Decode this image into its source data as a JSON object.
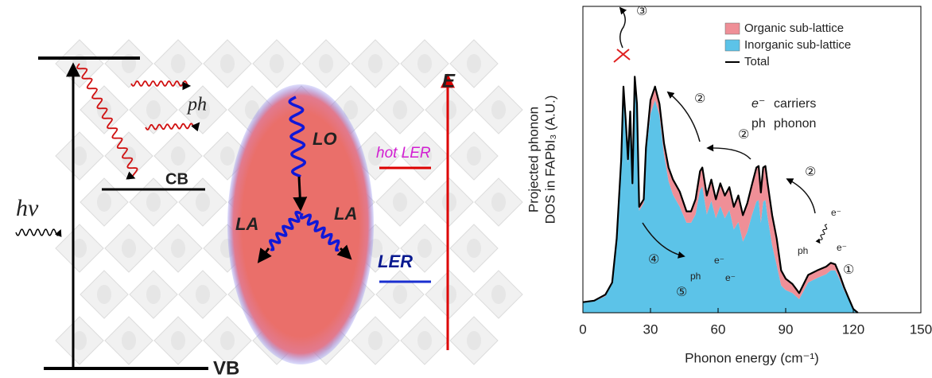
{
  "diagram": {
    "ph": "ph",
    "hv": "hν",
    "cb": "CB",
    "vb": "VB",
    "lo": "LO",
    "la_left": "LA",
    "la_right": "LA",
    "energy": "E",
    "hot_ler": "hot LER",
    "ler": "LER"
  },
  "chart_data": {
    "type": "area",
    "stacked": true,
    "x_label": "Phonon energy (cm⁻¹)",
    "y_label": [
      "Projected phonon",
      "DOS in FAPbI₃ (A.U.)"
    ],
    "xlim": [
      0,
      150
    ],
    "xticks": [
      0,
      30,
      60,
      90,
      120,
      150
    ],
    "ylim": [
      0,
      4.05
    ],
    "x": [
      0,
      5,
      10,
      13,
      15,
      17,
      18,
      19,
      20,
      21,
      22,
      23,
      24,
      25,
      27,
      28,
      30,
      32,
      34,
      36,
      38,
      40,
      43,
      46,
      48,
      50,
      52,
      53,
      55,
      57,
      59,
      61,
      63,
      65,
      67,
      69,
      71,
      73,
      75,
      77,
      78,
      79,
      80,
      81,
      82,
      84,
      86,
      88,
      90,
      93,
      96,
      100,
      104,
      108,
      110,
      112,
      114,
      116,
      118,
      120,
      122
    ],
    "series": [
      {
        "name": "Organic sub-lattice",
        "color": "#ef8f97",
        "values": [
          0.01,
          0.01,
          0.02,
          0.02,
          0.03,
          0.05,
          0.06,
          0.06,
          0.05,
          0.06,
          0.05,
          0.06,
          0.06,
          0.05,
          0.05,
          0.08,
          0.18,
          0.18,
          0.15,
          0.15,
          0.18,
          0.2,
          0.2,
          0.15,
          0.15,
          0.2,
          0.25,
          0.25,
          0.25,
          0.28,
          0.25,
          0.3,
          0.3,
          0.3,
          0.3,
          0.35,
          0.35,
          0.38,
          0.4,
          0.45,
          0.45,
          0.4,
          0.45,
          0.45,
          0.45,
          0.4,
          0.35,
          0.2,
          0.15,
          0.12,
          0.08,
          0.1,
          0.1,
          0.1,
          0.1,
          0.08,
          0.06,
          0.04,
          0.02,
          0.01,
          0
        ]
      },
      {
        "name": "Inorganic sub-lattice",
        "color": "#5cc3e8",
        "values": [
          0.13,
          0.15,
          0.22,
          0.38,
          0.95,
          1.98,
          2.93,
          2.49,
          1.98,
          2.6,
          1.66,
          3.06,
          2.7,
          1.35,
          1.45,
          2.1,
          2.63,
          2.81,
          2.61,
          2.09,
          1.74,
          1.56,
          1.4,
          1.19,
          1.19,
          1.3,
          1.62,
          1.67,
          1.3,
          1.48,
          1.25,
          1.41,
          1.25,
          1.36,
          1.1,
          1.2,
          0.94,
          1.07,
          1.29,
          1.47,
          1.49,
          1.19,
          1.47,
          1.49,
          1.26,
          0.89,
          0.63,
          0.36,
          0.3,
          0.26,
          0.18,
          0.4,
          0.46,
          0.51,
          0.56,
          0.56,
          0.44,
          0.29,
          0.17,
          0.04,
          0
        ]
      },
      {
        "name": "Total",
        "type": "line",
        "color": "#000000",
        "values": [
          0.14,
          0.16,
          0.24,
          0.4,
          0.98,
          2.03,
          2.99,
          2.55,
          2.03,
          2.66,
          1.71,
          3.12,
          2.76,
          1.4,
          1.5,
          2.18,
          2.81,
          2.99,
          2.76,
          2.24,
          1.92,
          1.76,
          1.6,
          1.34,
          1.34,
          1.5,
          1.87,
          1.92,
          1.55,
          1.76,
          1.5,
          1.71,
          1.55,
          1.66,
          1.4,
          1.55,
          1.29,
          1.45,
          1.69,
          1.92,
          1.94,
          1.59,
          1.92,
          1.94,
          1.71,
          1.29,
          0.98,
          0.56,
          0.45,
          0.38,
          0.26,
          0.5,
          0.56,
          0.61,
          0.66,
          0.64,
          0.5,
          0.33,
          0.19,
          0.05,
          0
        ]
      }
    ],
    "annotations": [
      "③",
      "②",
      "②",
      "②",
      "①",
      "④",
      "⑤",
      "e⁻",
      "carriers",
      "ph",
      "phonon",
      "ph",
      "e⁻",
      "e⁻",
      "ph",
      "e⁻",
      "e⁻"
    ]
  }
}
